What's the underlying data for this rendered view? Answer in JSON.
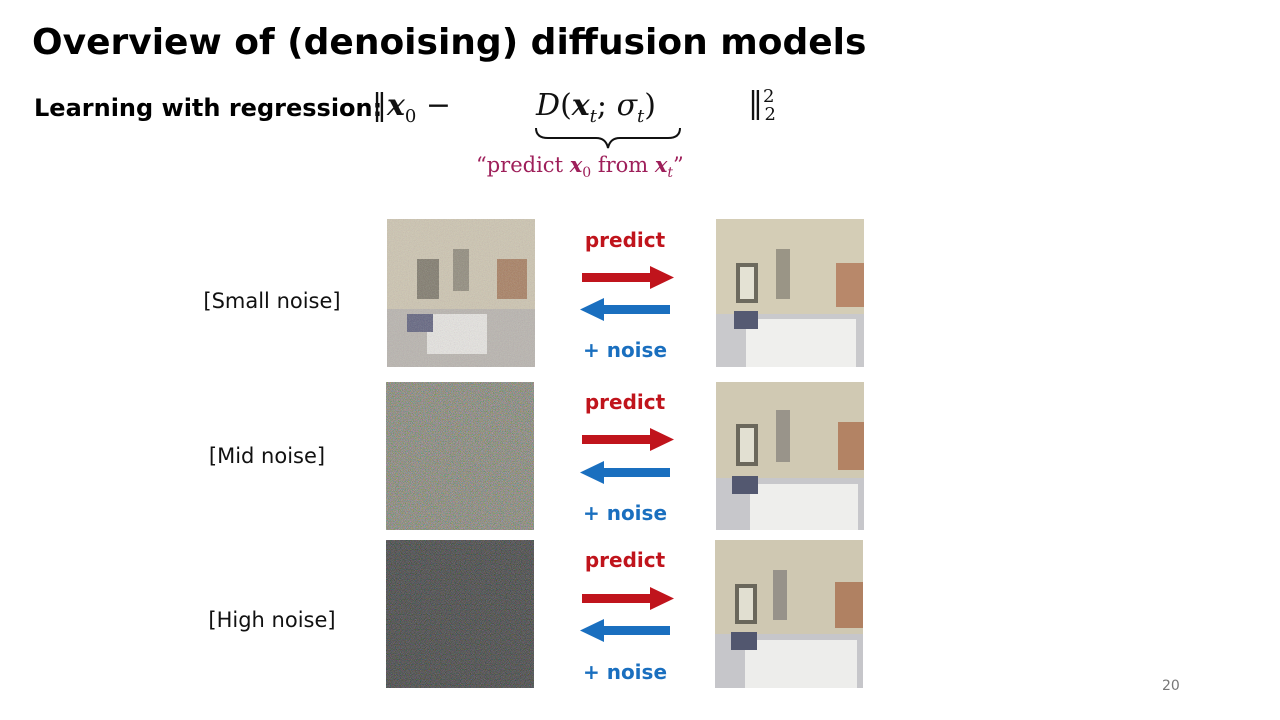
{
  "slide": {
    "title": "Overview of (denoising) diffusion models",
    "subtitle": "Learning with regression:",
    "page_number": "20"
  },
  "equation": {
    "caption_prefix": "“predict ",
    "caption_mid": " from ",
    "caption_suffix": "”"
  },
  "rows": [
    {
      "label": "[Small noise]",
      "predict": "predict",
      "noise": "+ noise"
    },
    {
      "label": "[Mid noise]",
      "predict": "predict",
      "noise": "+ noise"
    },
    {
      "label": "[High noise]",
      "predict": "predict",
      "noise": "+ noise"
    }
  ],
  "colors": {
    "predict": "#c0141c",
    "noise": "#1a6fbf",
    "caption": "#9e1f5a"
  }
}
